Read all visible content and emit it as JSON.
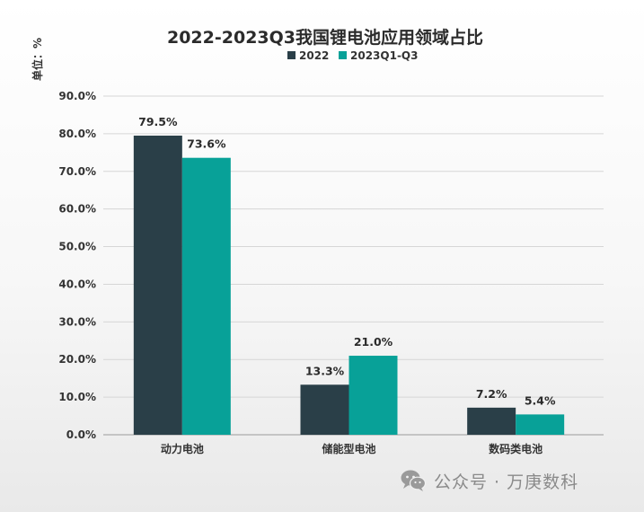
{
  "chart_data": {
    "type": "bar",
    "title": "2022-2023Q3我国锂电池应用领域占比",
    "unit_label": "单位：%",
    "categories": [
      "动力电池",
      "储能型电池",
      "数码类电池"
    ],
    "series": [
      {
        "name": "2022",
        "values": [
          79.5,
          13.3,
          7.2
        ],
        "labels": [
          "79.5%",
          "13.3%",
          "7.2%"
        ],
        "color": "#2a3f48"
      },
      {
        "name": "2023Q1-Q3",
        "values": [
          73.6,
          21.0,
          5.4
        ],
        "labels": [
          "73.6%",
          "21.0%",
          "5.4%"
        ],
        "color": "#08a198"
      }
    ],
    "ylim": [
      0,
      90
    ],
    "yticks": [
      0,
      10,
      20,
      30,
      40,
      50,
      60,
      70,
      80,
      90
    ],
    "ytick_labels": [
      "0.0%",
      "10.0%",
      "20.0%",
      "30.0%",
      "40.0%",
      "50.0%",
      "60.0%",
      "70.0%",
      "80.0%",
      "90.0%"
    ],
    "grid": true,
    "legend_position": "top-center",
    "xlabel": "",
    "ylabel": ""
  },
  "watermark": {
    "icon": "wechat-icon",
    "text": "公众号 · 万庚数科"
  }
}
